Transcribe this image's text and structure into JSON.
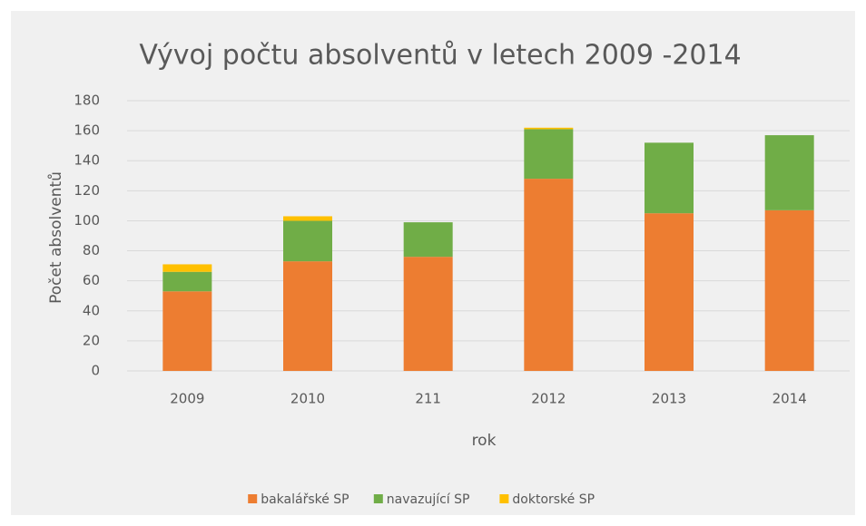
{
  "chart_data": {
    "type": "stacked_bar",
    "title": "Vývoj počtu absolventů v letech 2009 -2014",
    "x_label": "rok",
    "y_label": "Počet absolventů",
    "categories": [
      "2009",
      "2010",
      "211",
      "2012",
      "2013",
      "2014"
    ],
    "series": [
      {
        "name": "bakalářské SP",
        "color": "#ed7d31",
        "values": [
          53,
          73,
          76,
          128,
          105,
          107
        ]
      },
      {
        "name": "navazující SP",
        "color": "#70ad47",
        "values": [
          13,
          27,
          23,
          33,
          47,
          50
        ]
      },
      {
        "name": "doktorské SP",
        "color": "#ffc000",
        "values": [
          5,
          3,
          0,
          1,
          0,
          0
        ]
      }
    ],
    "ylim": [
      0,
      180
    ],
    "yticks": [
      0,
      20,
      40,
      60,
      80,
      100,
      120,
      140,
      160,
      180
    ],
    "grid": true,
    "legend": "bottom"
  }
}
